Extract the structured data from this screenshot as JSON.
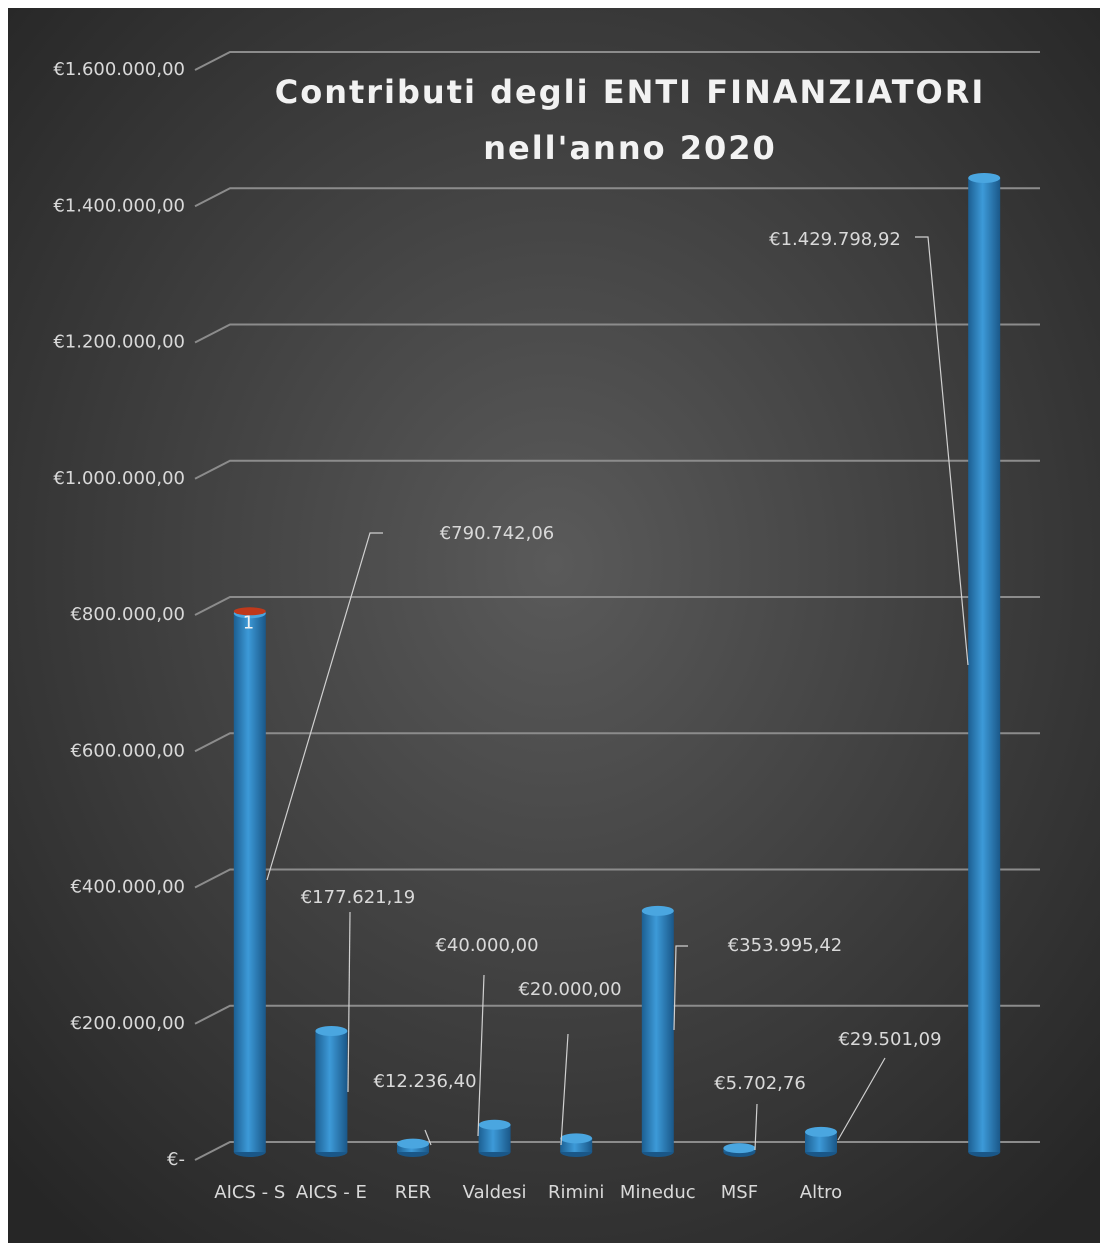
{
  "chart_data": {
    "type": "bar",
    "title": "Contributi degli ENTI FINANZIATORI nell'anno 2020",
    "categories": [
      "AICS - S",
      "AICS - E",
      "RER",
      "Valdesi",
      "Rimini",
      "Mineduc",
      "MSF",
      "Altro",
      null,
      null
    ],
    "values": [
      790742.06,
      177621.19,
      12236.4,
      40000,
      20000,
      353995.42,
      5702.76,
      29501.09,
      null,
      1429798.92
    ],
    "value_labels": [
      "€790.742,06",
      "€177.621,19",
      "€12.236,40",
      "€40.000,00",
      "€20.000,00",
      "€353.995,42",
      "€5.702,76",
      "€29.501,09",
      null,
      "€1.429.798,92"
    ],
    "color": "#2e86c8",
    "ylim": [
      0,
      1600000
    ],
    "yticks": [
      {
        "value": 0,
        "label": "€-"
      },
      {
        "value": 200000,
        "label": "€200.000,00"
      },
      {
        "value": 400000,
        "label": "€400.000,00"
      },
      {
        "value": 600000,
        "label": "€600.000,00"
      },
      {
        "value": 800000,
        "label": "€800.000,00"
      },
      {
        "value": 1000000,
        "label": "€1.000.000,00"
      },
      {
        "value": 1200000,
        "label": "€1.200.000,00"
      },
      {
        "value": 1400000,
        "label": "€1.400.000,00"
      },
      {
        "value": 1600000,
        "label": "€1.600.000,00"
      }
    ],
    "grid": true,
    "annotations": [
      {
        "text": "1"
      }
    ]
  }
}
